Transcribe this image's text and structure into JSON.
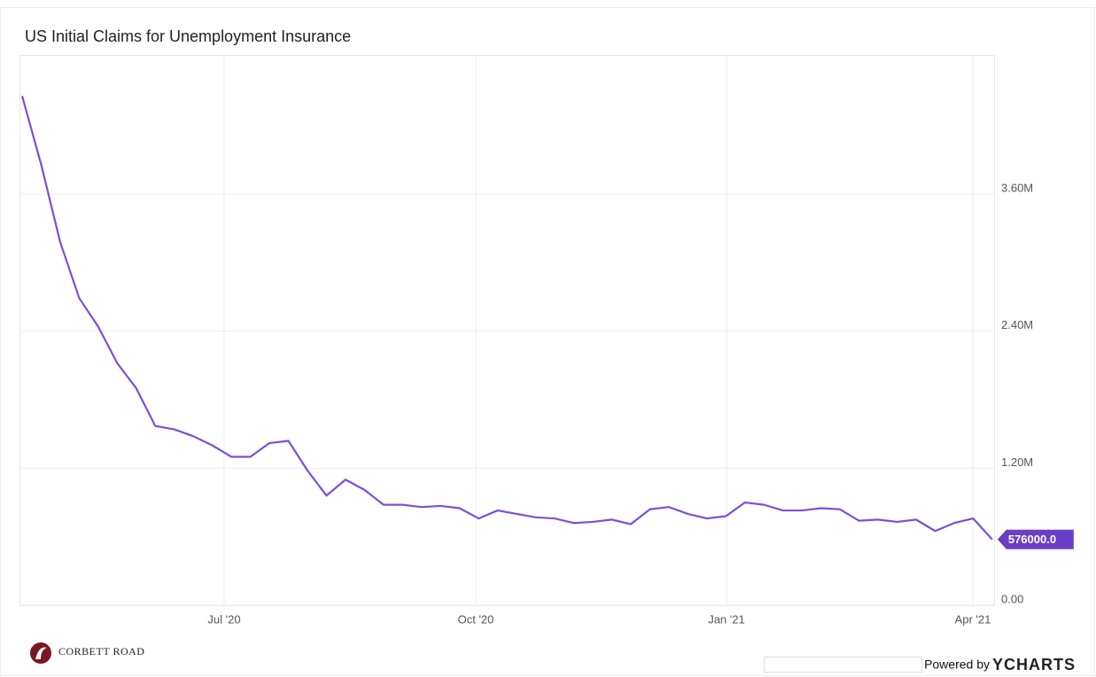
{
  "chart_data": {
    "type": "line",
    "title": "US Initial Claims for Unemployment Insurance",
    "categories": [
      null,
      null,
      null,
      null,
      null,
      null,
      null,
      null,
      null,
      null,
      null,
      null,
      null,
      null,
      null,
      null,
      null,
      null,
      null,
      null,
      null,
      null,
      null,
      null,
      null,
      null,
      null,
      null,
      null,
      null,
      null,
      null,
      null,
      null,
      null,
      null,
      null,
      null,
      null,
      null,
      null,
      null,
      null,
      null,
      null,
      null,
      null,
      null,
      null,
      null,
      null,
      null
    ],
    "series": [
      {
        "name": "US Initial Claims for Unemployment Insurance",
        "color": "#7b4fd8",
        "values": [
          4460000,
          3860000,
          3180000,
          2690000,
          2440000,
          2120000,
          1900000,
          1570000,
          1540000,
          1480000,
          1400000,
          1300000,
          1300000,
          1420000,
          1440000,
          1180000,
          960000,
          1100000,
          1010000,
          880000,
          880000,
          860000,
          870000,
          850000,
          760000,
          830000,
          800000,
          770000,
          760000,
          720000,
          730000,
          750000,
          710000,
          840000,
          860000,
          800000,
          760000,
          780000,
          900000,
          880000,
          830000,
          830000,
          850000,
          840000,
          740000,
          750000,
          730000,
          750000,
          650000,
          720000,
          760000,
          576000
        ],
        "value_labels": [
          null,
          null,
          null,
          null,
          null,
          null,
          null,
          null,
          null,
          null,
          null,
          null,
          null,
          null,
          null,
          null,
          null,
          null,
          null,
          null,
          null,
          null,
          null,
          null,
          null,
          null,
          null,
          null,
          null,
          null,
          null,
          null,
          null,
          null,
          null,
          null,
          null,
          null,
          null,
          null,
          null,
          null,
          null,
          null,
          null,
          null,
          null,
          null,
          null,
          null,
          null,
          "576000.0"
        ]
      }
    ],
    "xlim": [
      -0.14,
      51.1
    ],
    "xticks": [
      {
        "value": 10.62,
        "label": "Jul '20"
      },
      {
        "value": 23.85,
        "label": "Oct '20"
      },
      {
        "value": 37.03,
        "label": "Jan '21"
      },
      {
        "value": 49.98,
        "label": "Apr '21"
      }
    ],
    "ylim": [
      0,
      4820000
    ],
    "yticks": [
      {
        "value": 0,
        "label": "0.00"
      },
      {
        "value": 1200000,
        "label": "1.20M"
      },
      {
        "value": 2400000,
        "label": "2.40M"
      },
      {
        "value": 3600000,
        "label": "3.60M"
      }
    ],
    "grid": true,
    "label_color": "#6a3fc8"
  },
  "footer": {
    "logo": "CORBETT ROAD",
    "credit": "Powered by",
    "brand": "YCHARTS"
  }
}
